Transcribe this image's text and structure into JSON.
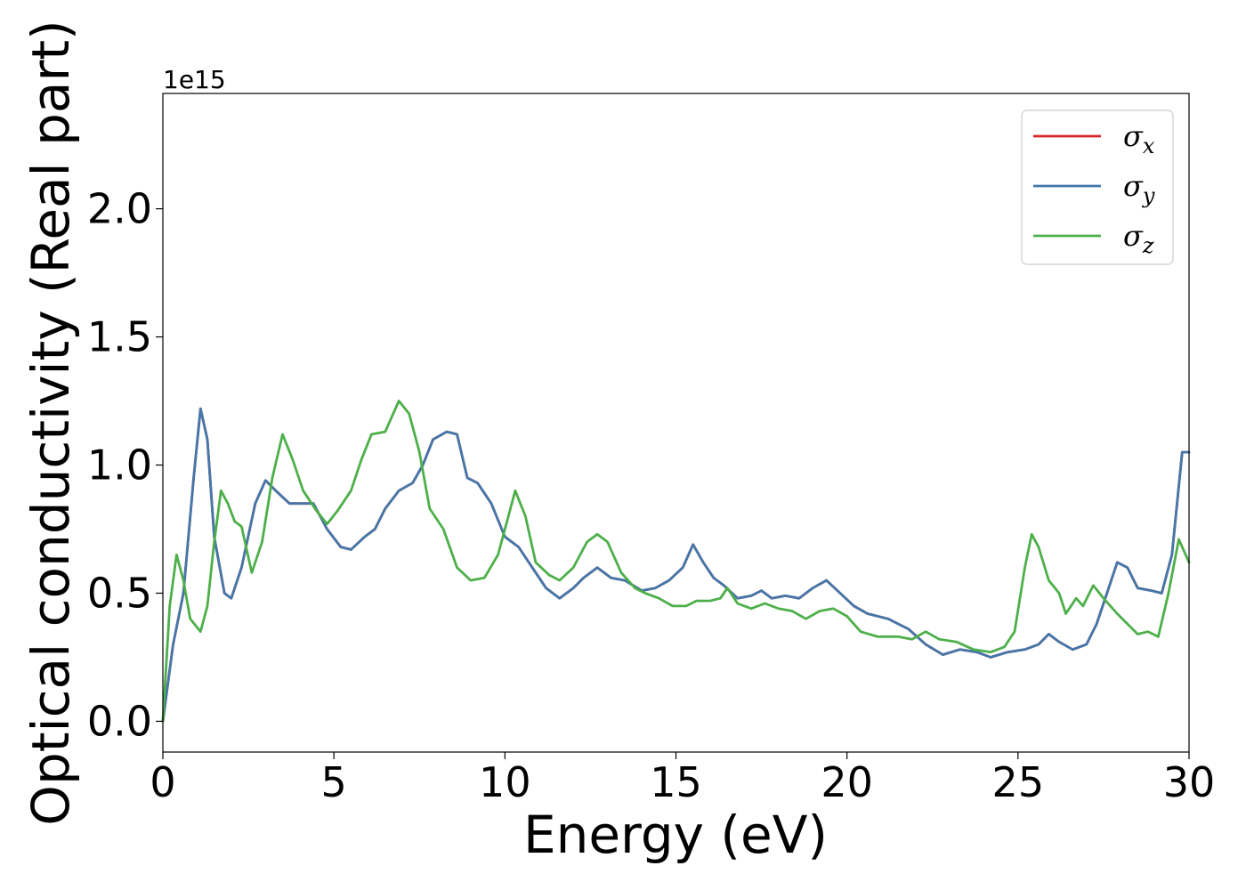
{
  "chart_data": {
    "type": "line",
    "xlabel": "Energy (eV)",
    "ylabel": "Optical conductivity (Real part)",
    "y_offset_label": "1e15",
    "xlim": [
      0,
      30
    ],
    "ylim": [
      -0.12,
      2.45
    ],
    "x_ticks": [
      0,
      5,
      10,
      15,
      20,
      25,
      30
    ],
    "x_tick_labels": [
      "0",
      "5",
      "10",
      "15",
      "20",
      "25",
      "30"
    ],
    "y_ticks": [
      0.0,
      0.5,
      1.0,
      1.5,
      2.0
    ],
    "y_tick_labels": [
      "0.0",
      "0.5",
      "1.0",
      "1.5",
      "2.0"
    ],
    "grid": false,
    "legend_position": "top-right",
    "series": [
      {
        "name": "σ",
        "subscript": "x",
        "color": "#d62728",
        "points": [
          [
            0,
            0.0
          ],
          [
            0.3,
            0.3
          ],
          [
            0.6,
            0.5
          ],
          [
            0.9,
            0.95
          ],
          [
            1.1,
            1.22
          ],
          [
            1.3,
            1.1
          ],
          [
            1.5,
            0.72
          ],
          [
            1.8,
            0.5
          ],
          [
            2.0,
            0.48
          ],
          [
            2.3,
            0.6
          ],
          [
            2.7,
            0.85
          ],
          [
            3.0,
            0.94
          ],
          [
            3.3,
            0.9
          ],
          [
            3.7,
            0.85
          ],
          [
            4.0,
            0.85
          ],
          [
            4.4,
            0.85
          ],
          [
            4.8,
            0.75
          ],
          [
            5.2,
            0.68
          ],
          [
            5.5,
            0.67
          ],
          [
            5.9,
            0.72
          ],
          [
            6.2,
            0.75
          ],
          [
            6.5,
            0.83
          ],
          [
            6.9,
            0.9
          ],
          [
            7.3,
            0.93
          ],
          [
            7.6,
            1.0
          ],
          [
            7.9,
            1.1
          ],
          [
            8.3,
            1.13
          ],
          [
            8.6,
            1.12
          ],
          [
            8.9,
            0.95
          ],
          [
            9.2,
            0.93
          ],
          [
            9.6,
            0.85
          ],
          [
            10.0,
            0.72
          ],
          [
            10.4,
            0.68
          ],
          [
            10.8,
            0.6
          ],
          [
            11.2,
            0.52
          ],
          [
            11.6,
            0.48
          ],
          [
            12.0,
            0.52
          ],
          [
            12.3,
            0.56
          ],
          [
            12.7,
            0.6
          ],
          [
            13.1,
            0.56
          ],
          [
            13.5,
            0.55
          ],
          [
            14.0,
            0.51
          ],
          [
            14.4,
            0.52
          ],
          [
            14.8,
            0.55
          ],
          [
            15.2,
            0.6
          ],
          [
            15.5,
            0.69
          ],
          [
            15.8,
            0.62
          ],
          [
            16.1,
            0.56
          ],
          [
            16.4,
            0.53
          ],
          [
            16.8,
            0.48
          ],
          [
            17.2,
            0.49
          ],
          [
            17.5,
            0.51
          ],
          [
            17.8,
            0.48
          ],
          [
            18.2,
            0.49
          ],
          [
            18.6,
            0.48
          ],
          [
            19.0,
            0.52
          ],
          [
            19.4,
            0.55
          ],
          [
            19.8,
            0.5
          ],
          [
            20.2,
            0.45
          ],
          [
            20.6,
            0.42
          ],
          [
            21.2,
            0.4
          ],
          [
            21.8,
            0.36
          ],
          [
            22.3,
            0.3
          ],
          [
            22.8,
            0.26
          ],
          [
            23.3,
            0.28
          ],
          [
            23.8,
            0.27
          ],
          [
            24.2,
            0.25
          ],
          [
            24.7,
            0.27
          ],
          [
            25.2,
            0.28
          ],
          [
            25.6,
            0.3
          ],
          [
            25.9,
            0.34
          ],
          [
            26.2,
            0.31
          ],
          [
            26.6,
            0.28
          ],
          [
            27.0,
            0.3
          ],
          [
            27.3,
            0.38
          ],
          [
            27.6,
            0.5
          ],
          [
            27.9,
            0.62
          ],
          [
            28.2,
            0.6
          ],
          [
            28.5,
            0.52
          ],
          [
            28.9,
            0.51
          ],
          [
            29.2,
            0.5
          ],
          [
            29.5,
            0.65
          ],
          [
            29.8,
            1.05
          ],
          [
            30,
            1.05
          ]
        ]
      },
      {
        "name": "σ",
        "subscript": "y",
        "color": "#4477aa",
        "points": [
          [
            0,
            0.0
          ],
          [
            0.3,
            0.3
          ],
          [
            0.6,
            0.5
          ],
          [
            0.9,
            0.95
          ],
          [
            1.1,
            1.22
          ],
          [
            1.3,
            1.1
          ],
          [
            1.5,
            0.72
          ],
          [
            1.8,
            0.5
          ],
          [
            2.0,
            0.48
          ],
          [
            2.3,
            0.6
          ],
          [
            2.7,
            0.85
          ],
          [
            3.0,
            0.94
          ],
          [
            3.3,
            0.9
          ],
          [
            3.7,
            0.85
          ],
          [
            4.0,
            0.85
          ],
          [
            4.4,
            0.85
          ],
          [
            4.8,
            0.75
          ],
          [
            5.2,
            0.68
          ],
          [
            5.5,
            0.67
          ],
          [
            5.9,
            0.72
          ],
          [
            6.2,
            0.75
          ],
          [
            6.5,
            0.83
          ],
          [
            6.9,
            0.9
          ],
          [
            7.3,
            0.93
          ],
          [
            7.6,
            1.0
          ],
          [
            7.9,
            1.1
          ],
          [
            8.3,
            1.13
          ],
          [
            8.6,
            1.12
          ],
          [
            8.9,
            0.95
          ],
          [
            9.2,
            0.93
          ],
          [
            9.6,
            0.85
          ],
          [
            10.0,
            0.72
          ],
          [
            10.4,
            0.68
          ],
          [
            10.8,
            0.6
          ],
          [
            11.2,
            0.52
          ],
          [
            11.6,
            0.48
          ],
          [
            12.0,
            0.52
          ],
          [
            12.3,
            0.56
          ],
          [
            12.7,
            0.6
          ],
          [
            13.1,
            0.56
          ],
          [
            13.5,
            0.55
          ],
          [
            14.0,
            0.51
          ],
          [
            14.4,
            0.52
          ],
          [
            14.8,
            0.55
          ],
          [
            15.2,
            0.6
          ],
          [
            15.5,
            0.69
          ],
          [
            15.8,
            0.62
          ],
          [
            16.1,
            0.56
          ],
          [
            16.4,
            0.53
          ],
          [
            16.8,
            0.48
          ],
          [
            17.2,
            0.49
          ],
          [
            17.5,
            0.51
          ],
          [
            17.8,
            0.48
          ],
          [
            18.2,
            0.49
          ],
          [
            18.6,
            0.48
          ],
          [
            19.0,
            0.52
          ],
          [
            19.4,
            0.55
          ],
          [
            19.8,
            0.5
          ],
          [
            20.2,
            0.45
          ],
          [
            20.6,
            0.42
          ],
          [
            21.2,
            0.4
          ],
          [
            21.8,
            0.36
          ],
          [
            22.3,
            0.3
          ],
          [
            22.8,
            0.26
          ],
          [
            23.3,
            0.28
          ],
          [
            23.8,
            0.27
          ],
          [
            24.2,
            0.25
          ],
          [
            24.7,
            0.27
          ],
          [
            25.2,
            0.28
          ],
          [
            25.6,
            0.3
          ],
          [
            25.9,
            0.34
          ],
          [
            26.2,
            0.31
          ],
          [
            26.6,
            0.28
          ],
          [
            27.0,
            0.3
          ],
          [
            27.3,
            0.38
          ],
          [
            27.6,
            0.5
          ],
          [
            27.9,
            0.62
          ],
          [
            28.2,
            0.6
          ],
          [
            28.5,
            0.52
          ],
          [
            28.9,
            0.51
          ],
          [
            29.2,
            0.5
          ],
          [
            29.5,
            0.65
          ],
          [
            29.8,
            1.05
          ],
          [
            30,
            1.05
          ]
        ]
      },
      {
        "name": "σ",
        "subscript": "z",
        "color": "#4daf4a",
        "points": [
          [
            0,
            0.0
          ],
          [
            0.2,
            0.45
          ],
          [
            0.4,
            0.65
          ],
          [
            0.6,
            0.55
          ],
          [
            0.8,
            0.4
          ],
          [
            1.1,
            0.35
          ],
          [
            1.3,
            0.45
          ],
          [
            1.5,
            0.7
          ],
          [
            1.7,
            0.9
          ],
          [
            1.9,
            0.85
          ],
          [
            2.1,
            0.78
          ],
          [
            2.3,
            0.76
          ],
          [
            2.6,
            0.58
          ],
          [
            2.9,
            0.7
          ],
          [
            3.2,
            0.95
          ],
          [
            3.5,
            1.12
          ],
          [
            3.8,
            1.02
          ],
          [
            4.1,
            0.9
          ],
          [
            4.5,
            0.82
          ],
          [
            4.8,
            0.77
          ],
          [
            5.1,
            0.82
          ],
          [
            5.5,
            0.9
          ],
          [
            5.8,
            1.02
          ],
          [
            6.1,
            1.12
          ],
          [
            6.5,
            1.13
          ],
          [
            6.9,
            1.25
          ],
          [
            7.2,
            1.2
          ],
          [
            7.5,
            1.05
          ],
          [
            7.8,
            0.83
          ],
          [
            8.2,
            0.75
          ],
          [
            8.6,
            0.6
          ],
          [
            9.0,
            0.55
          ],
          [
            9.4,
            0.56
          ],
          [
            9.8,
            0.65
          ],
          [
            10.1,
            0.8
          ],
          [
            10.3,
            0.9
          ],
          [
            10.6,
            0.8
          ],
          [
            10.9,
            0.62
          ],
          [
            11.3,
            0.57
          ],
          [
            11.6,
            0.55
          ],
          [
            12.0,
            0.6
          ],
          [
            12.4,
            0.7
          ],
          [
            12.7,
            0.73
          ],
          [
            13.0,
            0.7
          ],
          [
            13.4,
            0.58
          ],
          [
            13.8,
            0.52
          ],
          [
            14.1,
            0.5
          ],
          [
            14.5,
            0.48
          ],
          [
            14.9,
            0.45
          ],
          [
            15.3,
            0.45
          ],
          [
            15.6,
            0.47
          ],
          [
            16.0,
            0.47
          ],
          [
            16.3,
            0.48
          ],
          [
            16.5,
            0.52
          ],
          [
            16.8,
            0.46
          ],
          [
            17.2,
            0.44
          ],
          [
            17.6,
            0.46
          ],
          [
            18.0,
            0.44
          ],
          [
            18.4,
            0.43
          ],
          [
            18.8,
            0.4
          ],
          [
            19.2,
            0.43
          ],
          [
            19.6,
            0.44
          ],
          [
            20.0,
            0.41
          ],
          [
            20.4,
            0.35
          ],
          [
            20.9,
            0.33
          ],
          [
            21.5,
            0.33
          ],
          [
            21.9,
            0.32
          ],
          [
            22.3,
            0.35
          ],
          [
            22.7,
            0.32
          ],
          [
            23.2,
            0.31
          ],
          [
            23.7,
            0.28
          ],
          [
            24.2,
            0.27
          ],
          [
            24.6,
            0.29
          ],
          [
            24.9,
            0.35
          ],
          [
            25.2,
            0.6
          ],
          [
            25.4,
            0.73
          ],
          [
            25.6,
            0.68
          ],
          [
            25.9,
            0.55
          ],
          [
            26.2,
            0.5
          ],
          [
            26.4,
            0.42
          ],
          [
            26.7,
            0.48
          ],
          [
            26.9,
            0.45
          ],
          [
            27.2,
            0.53
          ],
          [
            27.5,
            0.48
          ],
          [
            27.9,
            0.42
          ],
          [
            28.2,
            0.38
          ],
          [
            28.5,
            0.34
          ],
          [
            28.8,
            0.35
          ],
          [
            29.1,
            0.33
          ],
          [
            29.4,
            0.5
          ],
          [
            29.7,
            0.71
          ],
          [
            30,
            0.62
          ]
        ]
      }
    ]
  }
}
